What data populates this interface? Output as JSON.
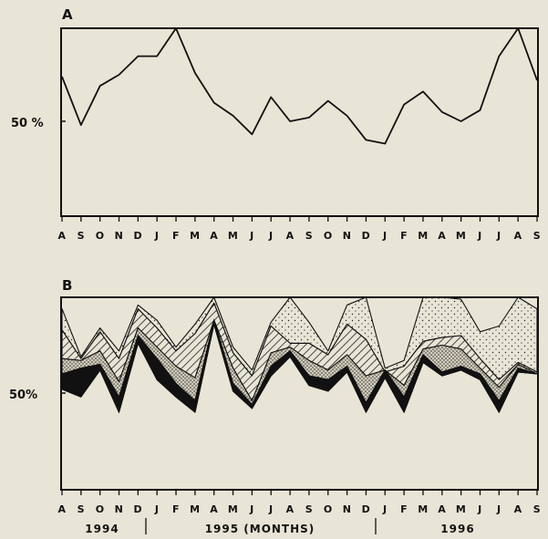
{
  "chart_data": [
    {
      "type": "line",
      "panel_label": "A",
      "ytick_label": "50 %",
      "ylim": [
        0,
        100
      ],
      "x": [
        "A",
        "S",
        "O",
        "N",
        "D",
        "J",
        "F",
        "M",
        "A",
        "M",
        "J",
        "J",
        "A",
        "S",
        "O",
        "N",
        "D",
        "J",
        "F",
        "M",
        "A",
        "M",
        "J",
        "J",
        "A",
        "S"
      ],
      "values": [
        74,
        48,
        69,
        75,
        85,
        85,
        100,
        76,
        60,
        53,
        43,
        63,
        50,
        52,
        61,
        53,
        40,
        38,
        59,
        66,
        55,
        50,
        56,
        85,
        100,
        72
      ],
      "grid": false
    },
    {
      "type": "area",
      "panel_label": "B",
      "ytick_label": "50%",
      "ylim": [
        0,
        100
      ],
      "x": [
        "A",
        "S",
        "O",
        "N",
        "D",
        "J",
        "F",
        "M",
        "A",
        "M",
        "J",
        "J",
        "A",
        "S",
        "O",
        "N",
        "D",
        "J",
        "F",
        "M",
        "A",
        "M",
        "J",
        "J",
        "A",
        "S"
      ],
      "x_year_labels": [
        "1994",
        "1995 (MONTHS)",
        "1996"
      ],
      "series": [
        {
          "values": [
            52,
            48,
            62,
            40,
            76,
            57,
            48,
            40,
            86,
            51,
            42,
            59,
            69,
            54,
            51,
            61,
            40,
            58,
            40,
            66,
            59,
            62,
            57,
            40,
            61,
            60
          ]
        },
        {
          "values": [
            60,
            63,
            65,
            48,
            80,
            68,
            55,
            46,
            88,
            55,
            44,
            64,
            72,
            59,
            57,
            64,
            45,
            62,
            48,
            70,
            61,
            64,
            60,
            46,
            63,
            60
          ]
        },
        {
          "values": [
            68,
            67,
            72,
            56,
            84,
            74,
            64,
            58,
            88,
            63,
            46,
            71,
            74,
            67,
            62,
            70,
            59,
            62,
            54,
            73,
            75,
            73,
            63,
            53,
            65,
            60
          ]
        },
        {
          "values": [
            83,
            68,
            82,
            68,
            94,
            84,
            72,
            81,
            97,
            71,
            59,
            85,
            76,
            76,
            70,
            86,
            78,
            61,
            64,
            77,
            79,
            80,
            68,
            57,
            66,
            61
          ]
        },
        {
          "values": [
            94,
            69,
            84,
            72,
            96,
            88,
            74,
            86,
            100,
            74,
            62,
            87,
            100,
            87,
            72,
            96,
            100,
            63,
            67,
            100,
            100,
            99,
            82,
            85,
            100,
            94
          ]
        }
      ],
      "series_fills": [
        "solid-black",
        "gray",
        "stipple-dense",
        "diagonal-hatch",
        "stipple-light"
      ],
      "grid": false
    }
  ]
}
